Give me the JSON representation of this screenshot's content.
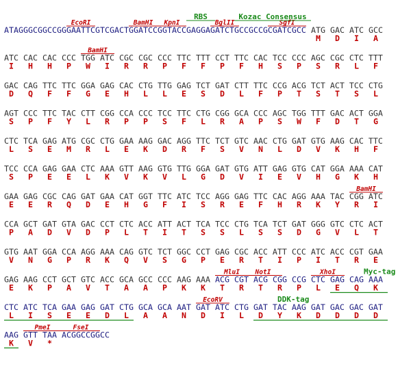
{
  "rows": [
    {
      "segments": [
        {
          "text": "ATAGGGCGGCCGGGAATTCGTCGACTGGATCCGGTACCGAGGAGATCTGCCGCCGCGATCGCC",
          "color": "#1c1c80"
        },
        {
          "text": "ATG GAC ATC GCC",
          "color": "#333333"
        }
      ],
      "translation": "M D I A",
      "annotations": [
        {
          "label": "EcoRI"
        },
        {
          "label": "BamHI"
        },
        {
          "label": "KpnI"
        },
        {
          "label": "BglII"
        },
        {
          "label": "SgfI"
        },
        {
          "label": "RBS"
        },
        {
          "label": "Kozac Consensus"
        }
      ]
    },
    {
      "segments": [
        {
          "text": "ATC CAC CAC CCC TGG ATC CGC CGC CCC TTC TTT CCT TTC CAC TCC CCC AGC CGC CTC TTT",
          "color": "#333333"
        }
      ],
      "translation": "I H H P W I R R P F F P F H S P S R L F",
      "annotations": [
        {
          "label": "BamHI"
        }
      ]
    },
    {
      "segments": [
        {
          "text": "GAC CAG TTC TTC GGA GAG CAC CTG TTG GAG TCT GAT CTT TTC CCG ACG TCT ACT TCC CTG",
          "color": "#333333"
        }
      ],
      "translation": "D Q F F G E H L L E S D L F P T S T S L",
      "annotations": []
    },
    {
      "segments": [
        {
          "text": "AGT CCC TTC TAC CTT CGG CCA CCC TCC TTC CTG CGG GCA CCC AGC TGG TTT GAC ACT GGA",
          "color": "#333333"
        }
      ],
      "translation": "S P F Y L R P P S F L R A P S W F D T G",
      "annotations": []
    },
    {
      "segments": [
        {
          "text": "CTC TCA GAG ATG CGC CTG GAA AAG GAC AGG TTC TCT GTC AAC CTG GAT GTG AAG CAC TTC",
          "color": "#333333"
        }
      ],
      "translation": "L S E M R L E K D R F S V N L D V K H F",
      "annotations": []
    },
    {
      "segments": [
        {
          "text": "TCC CCA GAG GAA CTC AAA GTT AAG GTG TTG GGA GAT GTG ATT GAG GTG CAT GGA AAA CAT",
          "color": "#333333"
        }
      ],
      "translation": "S P E E L K V K V L G D V I E V H G K H",
      "annotations": []
    },
    {
      "segments": [
        {
          "text": "GAA GAG CGC CAG GAT GAA CAT GGT TTC ATC TCC AGG GAG TTC CAC AGG AAA TAC CGG ATC",
          "color": "#333333"
        }
      ],
      "translation": "E E R Q D E H G F I S R E F H R K Y R I",
      "annotations": [
        {
          "label": "BamHI"
        }
      ]
    },
    {
      "segments": [
        {
          "text": "CCA GCT GAT GTA GAC CCT CTC ACC ATT ACT TCA TCC CTG TCA TCT GAT GGG GTC CTC ACT",
          "color": "#333333"
        }
      ],
      "translation": "P A D V D P L T I T S S L S S D G V L T",
      "annotations": []
    },
    {
      "segments": [
        {
          "text": "GTG AAT GGA CCA AGG AAA CAG GTC TCT GGC CCT GAG CGC ACC ATT CCC ATC ACC CGT GAA",
          "color": "#333333"
        }
      ],
      "translation": "V N G P R K Q V S G P E R T I P I T R E",
      "annotations": []
    },
    {
      "segments": [
        {
          "text": "GAG AAG CCT GCT GTC ACC GCA GCC CCC AAG AAA",
          "color": "#333333"
        },
        {
          "text": "ACG CGT ACG CGG CCG CTC GAG CAG AAA",
          "color": "#1c1c80"
        }
      ],
      "translation": "E K P A V T A A P K K T R T R P L E Q K",
      "annotations": [
        {
          "label": "MluI"
        },
        {
          "label": "NotI"
        },
        {
          "label": "XhoI"
        },
        {
          "label": "Myc-tag"
        }
      ]
    },
    {
      "segments": [
        {
          "text": "CTC ATC TCA GAA GAG GAT CTG GCA GCA AAT GAT ATC CTG GAT TAC AAG GAT GAC GAC GAT",
          "color": "#1c1c80"
        }
      ],
      "translation": "L I S E E D L A A N D I L D Y K D D D D",
      "annotations": [
        {
          "label": "EcoRV"
        },
        {
          "label": "DDK-tag"
        }
      ]
    },
    {
      "segments": [
        {
          "text": "AAG GTT TAA ACGGCCGGCC",
          "color": "#1c1c80"
        }
      ],
      "translation": "K V *",
      "annotations": [
        {
          "label": "PmeI"
        },
        {
          "label": "FseI"
        }
      ]
    }
  ]
}
